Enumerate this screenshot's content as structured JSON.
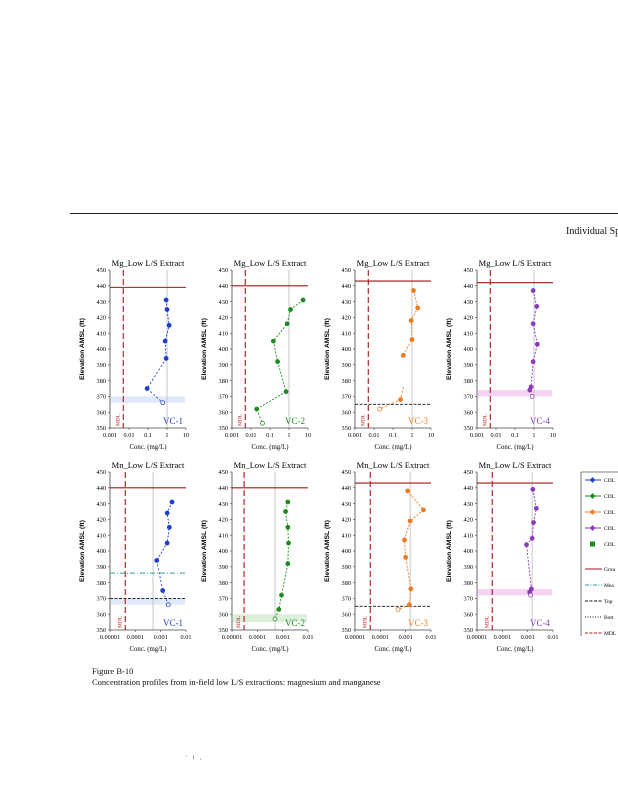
{
  "header": {
    "title": "Individual Sp"
  },
  "caption": {
    "figure": "Figure B-10",
    "text": "Concentration profiles from in-field low L/S extractions: magnesium and manganese"
  },
  "page_number": "' i ,",
  "legend": {
    "markers": [
      "CDL",
      "CDL",
      "CDL",
      "CDL",
      "CDL"
    ],
    "lines": [
      "Grou",
      "Mea",
      "Top",
      "Bott",
      "MDL"
    ]
  },
  "colors": {
    "vc1": "#1f3fd0",
    "vc2": "#1f8a1f",
    "vc3": "#f07a20",
    "vc4": "#8a3bb8",
    "groundwater": "#a01818",
    "mdl": "#b01818",
    "mean": "#2aa0a0",
    "band_blue": "#dfeaf8",
    "band_pink": "#f7d2f2"
  },
  "chart_data": [
    {
      "type": "line",
      "title": "Mg_Low L/S Extract",
      "well": "VC-1",
      "color_key": "vc1",
      "xlabel": "Conc. (mg/L)",
      "ylabel": "Elevation AMSL (ft)",
      "xlog": true,
      "xlim": [
        0.001,
        10
      ],
      "xticks": [
        "0.001",
        "0.01",
        "0.1",
        "1",
        "10"
      ],
      "ylim": [
        350,
        450
      ],
      "yticks": [
        "350",
        "360",
        "370",
        "380",
        "390",
        "400",
        "410",
        "420",
        "430",
        "440",
        "450"
      ],
      "groundwater": 439,
      "mdl_x": 0.005,
      "mdl_label": "MDL",
      "ref_x": 1.0,
      "series": [
        {
          "name": "upper",
          "dash": "2,1.5",
          "points": [
            [
              0.9,
              431
            ],
            [
              1.0,
              425
            ],
            [
              1.3,
              415
            ],
            [
              0.8,
              405
            ],
            [
              0.9,
              394
            ]
          ]
        },
        {
          "name": "lower",
          "dash": "2,2",
          "points": [
            [
              0.9,
              394
            ],
            [
              0.09,
              375
            ],
            [
              0.6,
              366
            ]
          ],
          "open_last": true
        }
      ],
      "band": [
        366,
        370
      ],
      "band_color_key": "band_blue"
    },
    {
      "type": "line",
      "title": "Mg_Low L/S Extract",
      "well": "VC-2",
      "color_key": "vc2",
      "xlabel": "Conc. (mg/L)",
      "ylabel": "Elevation AMSL (ft)",
      "xlog": true,
      "xlim": [
        0.001,
        10
      ],
      "xticks": [
        "0.001",
        "0.01",
        "0.1",
        "1",
        "10"
      ],
      "ylim": [
        350,
        450
      ],
      "yticks": [
        "350",
        "360",
        "370",
        "380",
        "390",
        "400",
        "410",
        "420",
        "430",
        "440",
        "450"
      ],
      "groundwater": 440,
      "mdl_x": 0.005,
      "mdl_label": "MDL",
      "ref_x": 1.0,
      "series": [
        {
          "name": "upper",
          "dash": "2,1.5",
          "points": [
            [
              5.5,
              431
            ],
            [
              1.2,
              425
            ],
            [
              0.8,
              416
            ],
            [
              0.15,
              405
            ],
            [
              0.25,
              392
            ],
            [
              0.7,
              373
            ],
            [
              0.02,
              362
            ]
          ]
        },
        {
          "name": "lower",
          "dash": "2,2",
          "points": [
            [
              0.02,
              362
            ],
            [
              0.04,
              353
            ]
          ],
          "open_last": true
        }
      ],
      "band": null,
      "band_color_key": null
    },
    {
      "type": "line",
      "title": "Mg_Low L/S Extract",
      "well": "VC-3",
      "color_key": "vc3",
      "xlabel": "Conc. (mg/L)",
      "ylabel": "Elevation AMSL (ft)",
      "xlog": true,
      "xlim": [
        0.001,
        10
      ],
      "xticks": [
        "0.001",
        "0.01",
        "0.1",
        "1",
        "10"
      ],
      "ylim": [
        350,
        450
      ],
      "yticks": [
        "350",
        "360",
        "370",
        "380",
        "390",
        "400",
        "410",
        "420",
        "430",
        "440",
        "450"
      ],
      "groundwater": 443,
      "mdl_x": 0.005,
      "mdl_label": "MDL",
      "ref_x": 1.0,
      "bottom_line": 365,
      "series": [
        {
          "name": "upper",
          "dash": "2,1.5",
          "points": [
            [
              1.2,
              437
            ],
            [
              2.0,
              426
            ],
            [
              0.9,
              418
            ],
            [
              1.0,
              406
            ],
            [
              0.35,
              396
            ]
          ]
        },
        {
          "name": "lower",
          "dash": "2,2",
          "points": [
            [
              0.35,
              376
            ],
            [
              0.25,
              368
            ],
            [
              0.02,
              362
            ]
          ],
          "open_last": true
        }
      ],
      "band": null,
      "band_color_key": null
    },
    {
      "type": "line",
      "title": "Mg_Low L/S Extract",
      "well": "VC-4",
      "color_key": "vc4",
      "xlabel": "Conc. (mg/L)",
      "ylabel": "Elevation AMSL (ft)",
      "xlog": true,
      "xlim": [
        0.001,
        10
      ],
      "xticks": [
        "0.001",
        "0.01",
        "0.1",
        "1",
        "10"
      ],
      "ylim": [
        350,
        450
      ],
      "yticks": [
        "350",
        "360",
        "370",
        "380",
        "390",
        "400",
        "410",
        "420",
        "430",
        "440",
        "450"
      ],
      "groundwater": 442,
      "mdl_x": 0.005,
      "mdl_label": "MDL",
      "ref_x": 1.0,
      "series": [
        {
          "name": "upper",
          "dash": "2,1.5",
          "points": [
            [
              0.9,
              437
            ],
            [
              1.4,
              427
            ],
            [
              0.9,
              416
            ],
            [
              1.5,
              403
            ],
            [
              0.9,
              392
            ],
            [
              0.7,
              376
            ],
            [
              0.6,
              374
            ]
          ]
        },
        {
          "name": "lower",
          "dash": "2,2",
          "points": [
            [
              0.6,
              374
            ],
            [
              0.8,
              370
            ]
          ],
          "open_last": true
        }
      ],
      "band": [
        370,
        374
      ],
      "band_color_key": "band_pink"
    },
    {
      "type": "line",
      "title": "Mn_Low L/S Extract",
      "well": "VC-1",
      "color_key": "vc1",
      "xlabel": "Conc. (mg/L)",
      "ylabel": "Elevation AMSL (ft)",
      "xlog": true,
      "xlim": [
        1e-05,
        0.01
      ],
      "xticks": [
        "0.00001",
        "0.0001",
        "0.001",
        "0.01"
      ],
      "ylim": [
        350,
        450
      ],
      "yticks": [
        "350",
        "360",
        "370",
        "380",
        "390",
        "400",
        "410",
        "420",
        "430",
        "440",
        "450"
      ],
      "groundwater": 440,
      "mdl_x": 4e-05,
      "mdl_label": "MDL",
      "ref_x": 0.0005,
      "mean_line": 386,
      "bottom_line": 370,
      "series": [
        {
          "name": "upper",
          "dash": "2,1.5",
          "points": [
            [
              0.0028,
              431
            ],
            [
              0.0018,
              424
            ],
            [
              0.0022,
              415
            ],
            [
              0.0018,
              405
            ],
            [
              0.0007,
              394
            ]
          ]
        },
        {
          "name": "lower",
          "dash": "2,2",
          "points": [
            [
              0.0007,
              394
            ],
            [
              0.0012,
              375
            ],
            [
              0.002,
              366
            ]
          ],
          "open_last": true
        }
      ],
      "band": [
        366,
        370
      ],
      "band_color_key": "band_blue"
    },
    {
      "type": "line",
      "title": "Mn_Low L/S Extract",
      "well": "VC-2",
      "color_key": "vc2",
      "xlabel": "Conc. (mg/L)",
      "ylabel": "Elevation AMSL (ft)",
      "xlog": true,
      "xlim": [
        1e-05,
        0.01
      ],
      "xticks": [
        "0.00001",
        "0.0001",
        "0.001",
        "0.01"
      ],
      "ylim": [
        350,
        450
      ],
      "yticks": [
        "350",
        "360",
        "370",
        "380",
        "390",
        "400",
        "410",
        "420",
        "430",
        "440",
        "450"
      ],
      "groundwater": 440,
      "mdl_x": 3e-05,
      "mdl_label": "MDL",
      "ref_x": 0.0005,
      "series": [
        {
          "name": "upper",
          "dash": "2,1.5",
          "points": [
            [
              0.0016,
              431
            ],
            [
              0.0013,
              425
            ],
            [
              0.0016,
              415
            ],
            [
              0.0017,
              405
            ],
            [
              0.0016,
              392
            ],
            [
              0.0009,
              372
            ],
            [
              0.0007,
              363
            ]
          ]
        },
        {
          "name": "lower",
          "dash": "2,2",
          "points": [
            [
              0.0007,
              363
            ],
            [
              0.0005,
              357
            ]
          ],
          "open_last": true
        }
      ],
      "band": [
        355,
        360
      ],
      "band_color_key": "band_green"
    },
    {
      "type": "line",
      "title": "Mn_Low L/S Extract",
      "well": "VC-3",
      "color_key": "vc3",
      "xlabel": "Conc. (mg/L)",
      "ylabel": "Elevation AMSL (ft)",
      "xlog": true,
      "xlim": [
        1e-05,
        0.01
      ],
      "xticks": [
        "0.00001",
        "0.0001",
        "0.001",
        "0.01"
      ],
      "ylim": [
        350,
        450
      ],
      "yticks": [
        "350",
        "360",
        "370",
        "380",
        "390",
        "400",
        "410",
        "420",
        "430",
        "440",
        "450"
      ],
      "groundwater": 443,
      "mdl_x": 4e-05,
      "mdl_label": "MDL",
      "ref_x": 0.0015,
      "bottom_line": 365,
      "series": [
        {
          "name": "upper",
          "dash": "2,1.5",
          "points": [
            [
              0.0012,
              438
            ],
            [
              0.005,
              426
            ],
            [
              0.0015,
              419
            ],
            [
              0.0009,
              407
            ],
            [
              0.001,
              396
            ],
            [
              0.0016,
              376
            ],
            [
              0.0014,
              366
            ]
          ]
        },
        {
          "name": "lower",
          "dash": "2,2",
          "points": [
            [
              0.0014,
              366
            ],
            [
              0.0005,
              363
            ]
          ],
          "open_last": true
        }
      ],
      "band": null,
      "band_color_key": null
    },
    {
      "type": "line",
      "title": "Mn_Low L/S Extract",
      "well": "VC-4",
      "color_key": "vc4",
      "xlabel": "Conc. (mg/L)",
      "ylabel": "Elevation AMSL (ft)",
      "xlog": true,
      "xlim": [
        1e-05,
        0.01
      ],
      "xticks": [
        "0.00001",
        "0.0001",
        "0.001",
        "0.01"
      ],
      "ylim": [
        350,
        450
      ],
      "yticks": [
        "350",
        "360",
        "370",
        "380",
        "390",
        "400",
        "410",
        "420",
        "430",
        "440",
        "450"
      ],
      "groundwater": 443,
      "mdl_x": 4e-05,
      "mdl_label": "MDL",
      "ref_x": 0.0015,
      "series": [
        {
          "name": "upper",
          "dash": "2,1.5",
          "points": [
            [
              0.0016,
              439
            ],
            [
              0.0022,
              427
            ],
            [
              0.0017,
              418
            ],
            [
              0.0015,
              408
            ],
            [
              0.0009,
              404
            ],
            [
              0.0014,
              376
            ],
            [
              0.0012,
              374
            ]
          ]
        },
        {
          "name": "lower",
          "dash": "2,2",
          "points": [
            [
              0.0012,
              374
            ],
            [
              0.0013,
              372
            ]
          ],
          "open_last": true
        }
      ],
      "band": [
        372,
        376
      ],
      "band_color_key": "band_pink"
    }
  ]
}
